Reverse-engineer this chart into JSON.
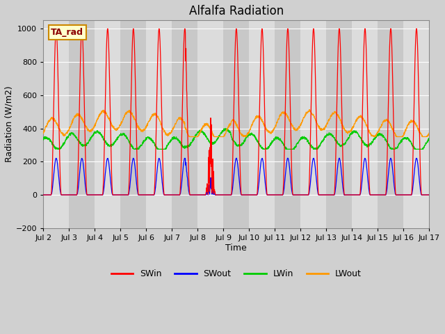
{
  "title": "Alfalfa Radiation",
  "xlabel": "Time",
  "ylabel": "Radiation (W/m2)",
  "ylim": [
    -200,
    1050
  ],
  "xlim": [
    0,
    15
  ],
  "tick_labels": [
    "Jul 2",
    "Jul 3",
    "Jul 4",
    "Jul 5",
    "Jul 6",
    "Jul 7",
    "Jul 8",
    "Jul 9",
    "Jul 10",
    "Jul 11",
    "Jul 12",
    "Jul 13",
    "Jul 14",
    "Jul 15",
    "Jul 16",
    "Jul 17"
  ],
  "legend_labels": [
    "SWin",
    "SWout",
    "LWin",
    "LWout"
  ],
  "legend_colors": [
    "#ff0000",
    "#0000ff",
    "#00cc00",
    "#ff9900"
  ],
  "annotation_text": "TA_rad",
  "annotation_fg": "#8b0000",
  "annotation_bg": "#ffffcc",
  "annotation_edge": "#cc8800",
  "plot_bg_light": "#dcdcdc",
  "plot_bg_dark": "#c8c8c8",
  "fig_bg": "#d0d0d0",
  "grid_color": "#ffffff",
  "title_fontsize": 12,
  "axis_fontsize": 9,
  "tick_fontsize": 8,
  "legend_fontsize": 9,
  "line_width": 0.9
}
